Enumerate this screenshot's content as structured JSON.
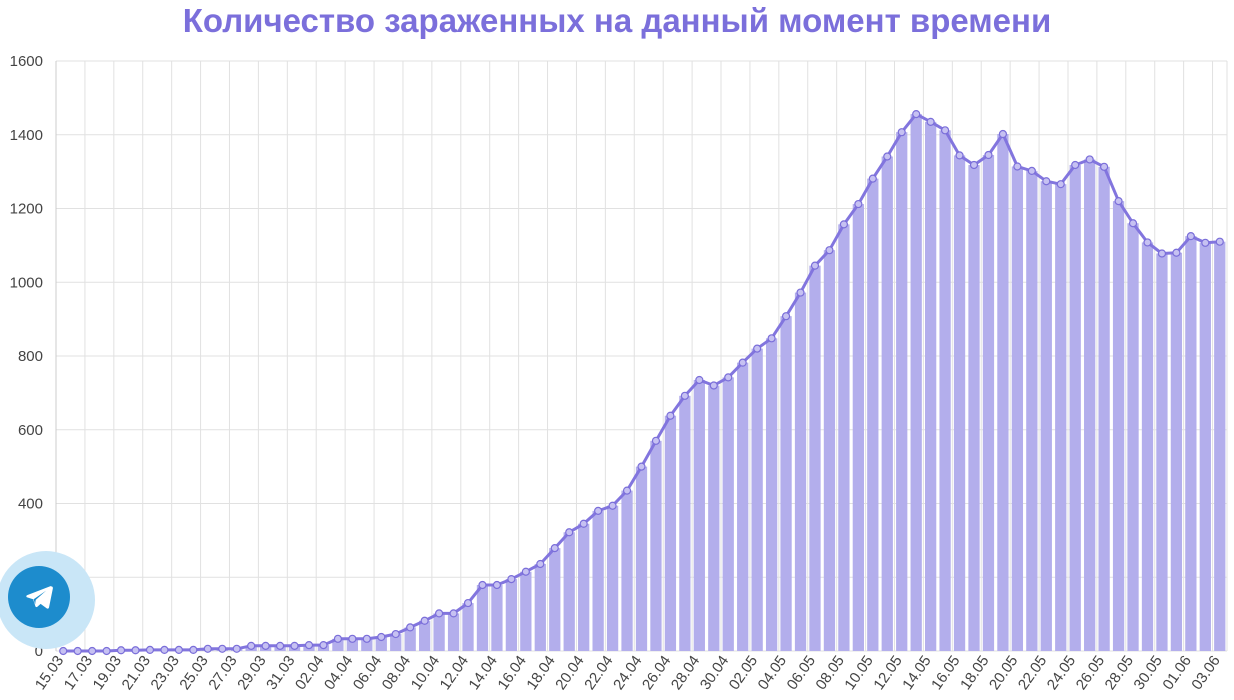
{
  "colors": {
    "title": "#7b6fdb",
    "bar": "#b3aeec",
    "line": "#8275de",
    "point_stroke": "#7a6ed9",
    "point_fill": "#c6c1f2",
    "grid": "#e1e1e1",
    "tick_text": "#444444",
    "tg_halo": "#c9e6f7",
    "tg_button": "#1d8ccd"
  },
  "telegram_widget": {
    "icon": "telegram-plane-icon"
  },
  "chart_data": {
    "type": "bar",
    "title": "Количество зараженных на данный момент времени",
    "xlabel": "",
    "ylabel": "",
    "ylim": [
      0,
      1600
    ],
    "yticks": [
      0,
      200,
      400,
      600,
      800,
      1000,
      1200,
      1400,
      1600
    ],
    "grid": true,
    "legend": "none",
    "overlay": "line-with-markers",
    "categories": [
      "15.03",
      "16.03",
      "17.03",
      "18.03",
      "19.03",
      "20.03",
      "21.03",
      "22.03",
      "23.03",
      "24.03",
      "25.03",
      "26.03",
      "27.03",
      "28.03",
      "29.03",
      "30.03",
      "31.03",
      "01.04",
      "02.04",
      "03.04",
      "04.04",
      "05.04",
      "06.04",
      "07.04",
      "08.04",
      "09.04",
      "10.04",
      "11.04",
      "12.04",
      "13.04",
      "14.04",
      "15.04",
      "16.04",
      "17.04",
      "18.04",
      "19.04",
      "20.04",
      "21.04",
      "22.04",
      "23.04",
      "24.04",
      "25.04",
      "26.04",
      "27.04",
      "28.04",
      "29.04",
      "30.04",
      "01.05",
      "02.05",
      "03.05",
      "04.05",
      "05.05",
      "06.05",
      "07.05",
      "08.05",
      "09.05",
      "10.05",
      "11.05",
      "12.05",
      "13.05",
      "14.05",
      "15.05",
      "16.05",
      "17.05",
      "18.05",
      "19.05",
      "20.05",
      "21.05",
      "22.05",
      "23.05",
      "24.05",
      "25.05",
      "26.05",
      "27.05",
      "28.05",
      "29.05",
      "30.05",
      "31.05",
      "01.06",
      "02.06",
      "03.06"
    ],
    "tick_labels": [
      "15.03",
      "17.03",
      "19.03",
      "21.03",
      "23.03",
      "25.03",
      "27.03",
      "29.03",
      "31.03",
      "02.04",
      "04.04",
      "06.04",
      "08.04",
      "10.04",
      "12.04",
      "14.04",
      "16.04",
      "18.04",
      "20.04",
      "22.04",
      "24.04",
      "26.04",
      "28.04",
      "30.04",
      "02.05",
      "04.05",
      "06.05",
      "08.05",
      "10.05",
      "12.05",
      "14.05",
      "16.05",
      "18.05",
      "20.05",
      "22.05",
      "24.05",
      "26.05",
      "28.05",
      "30.05",
      "01.06",
      "03.06"
    ],
    "values": [
      0,
      0,
      0,
      0,
      2,
      2,
      3,
      3,
      3,
      3,
      6,
      6,
      6,
      14,
      14,
      14,
      14,
      16,
      16,
      33,
      33,
      33,
      38,
      46,
      64,
      82,
      102,
      102,
      130,
      179,
      179,
      195,
      215,
      236,
      279,
      322,
      345,
      380,
      394,
      435,
      500,
      570,
      638,
      692,
      735,
      720,
      742,
      782,
      820,
      848,
      908,
      972,
      1045,
      1087,
      1157,
      1212,
      1281,
      1341,
      1407,
      1456,
      1435,
      1412,
      1344,
      1318,
      1345,
      1402,
      1314,
      1302,
      1274,
      1266,
      1318,
      1333,
      1313,
      1220,
      1160,
      1108,
      1078,
      1080,
      1125,
      1107,
      1110
    ]
  }
}
